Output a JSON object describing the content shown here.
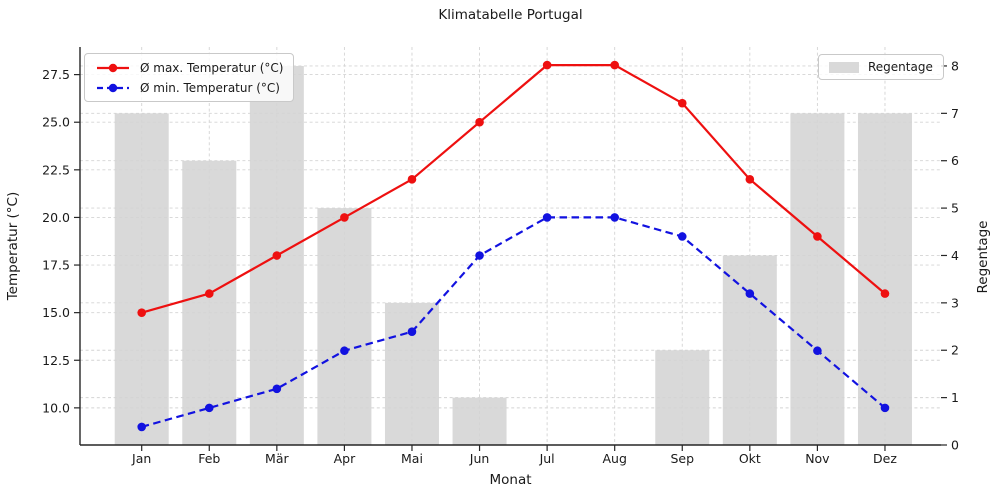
{
  "chart_data": {
    "type": "bar+line",
    "title": "Klimatabelle Portugal",
    "xlabel": "Monat",
    "ylabel_left": "Temperatur (°C)",
    "ylabel_right": "Regentage",
    "categories": [
      "Jan",
      "Feb",
      "Mär",
      "Apr",
      "Mai",
      "Jun",
      "Jul",
      "Aug",
      "Sep",
      "Okt",
      "Nov",
      "Dez"
    ],
    "series": [
      {
        "name": "Ø max. Temperatur (°C)",
        "type": "line",
        "style": "solid",
        "axis": "left",
        "color": "#ee1010",
        "values": [
          15,
          16,
          18,
          20,
          22,
          25,
          28,
          28,
          26,
          22,
          19,
          16
        ]
      },
      {
        "name": "Ø min. Temperatur (°C)",
        "type": "line",
        "style": "dashed",
        "axis": "left",
        "color": "#1212e0",
        "values": [
          9,
          10,
          11,
          13,
          14,
          18,
          20,
          20,
          19,
          16,
          13,
          10
        ]
      },
      {
        "name": "Regentage",
        "type": "bar",
        "axis": "right",
        "color": "#d9d9d9",
        "values": [
          7,
          6,
          8,
          5,
          3,
          1,
          0,
          0,
          2,
          4,
          7,
          7
        ]
      }
    ],
    "left_axis": {
      "range": [
        8.05,
        28.95
      ],
      "tick_values": [
        27.5,
        25.0,
        22.5,
        20.0,
        17.5,
        15.0,
        12.5,
        10.0
      ],
      "tick_labels": [
        "27.5",
        "25.0",
        "22.5",
        "20.0",
        "17.5",
        "15.0",
        "12.5",
        "10.0"
      ]
    },
    "right_axis": {
      "range": [
        0,
        8.4
      ],
      "tick_values": [
        0,
        1,
        2,
        3,
        4,
        5,
        6,
        7,
        8
      ],
      "tick_labels": [
        "0",
        "1",
        "2",
        "3",
        "4",
        "5",
        "6",
        "7",
        "8"
      ]
    },
    "grid": true,
    "legend_left_position": "upper left",
    "legend_right_position": "upper right"
  }
}
